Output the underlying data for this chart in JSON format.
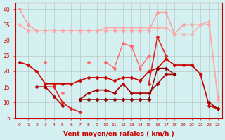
{
  "x": [
    0,
    1,
    2,
    3,
    4,
    5,
    6,
    7,
    8,
    9,
    10,
    11,
    12,
    13,
    14,
    15,
    16,
    17,
    18,
    19,
    20,
    21,
    22,
    23
  ],
  "series": [
    {
      "color": "#ff9999",
      "linewidth": 1.0,
      "marker": "D",
      "markersize": 2.5,
      "values": [
        40,
        35,
        33,
        33,
        33,
        33,
        33,
        33,
        33,
        33,
        33,
        33,
        33,
        33,
        33,
        33,
        39,
        39,
        32,
        35,
        35,
        35,
        35,
        12
      ]
    },
    {
      "color": "#ffaaaa",
      "linewidth": 1.0,
      "marker": "D",
      "markersize": 2.5,
      "values": [
        35,
        33,
        33,
        33,
        33,
        33,
        33,
        33,
        33,
        33,
        34,
        34,
        34,
        34,
        34,
        34,
        34,
        34,
        32,
        32,
        32,
        35,
        36,
        11
      ]
    },
    {
      "color": "#ff6666",
      "linewidth": 1.0,
      "marker": "D",
      "markersize": 2.5,
      "values": [
        null,
        null,
        null,
        23,
        null,
        13,
        null,
        null,
        23,
        null,
        23,
        21,
        29,
        28,
        21,
        25,
        null,
        null,
        null,
        null,
        null,
        null,
        null,
        null
      ]
    },
    {
      "color": "#cc0000",
      "linewidth": 1.2,
      "marker": "D",
      "markersize": 2.5,
      "values": [
        23,
        22,
        20,
        16,
        16,
        16,
        16,
        17,
        18,
        18,
        18,
        17,
        18,
        18,
        17,
        20,
        21,
        24,
        22,
        22,
        22,
        19,
        9,
        8
      ]
    },
    {
      "color": "#dd2222",
      "linewidth": 1.2,
      "marker": "D",
      "markersize": 2.5,
      "values": [
        null,
        null,
        null,
        15,
        15,
        10,
        8,
        7,
        null,
        null,
        null,
        null,
        null,
        null,
        null,
        16,
        31,
        25,
        null,
        null,
        null,
        null,
        null,
        null
      ]
    },
    {
      "color": "#aa0000",
      "linewidth": 1.2,
      "marker": "D",
      "markersize": 2.5,
      "values": [
        null,
        null,
        15,
        15,
        12,
        9,
        null,
        11,
        13,
        14,
        14,
        13,
        16,
        13,
        13,
        13,
        16,
        19,
        19,
        null,
        null,
        null,
        10,
        8
      ]
    },
    {
      "color": "#880000",
      "linewidth": 1.0,
      "marker": "D",
      "markersize": 2.5,
      "values": [
        null,
        null,
        null,
        null,
        null,
        null,
        null,
        11,
        11,
        11,
        11,
        11,
        11,
        11,
        11,
        11,
        21,
        21,
        19,
        null,
        null,
        null,
        null,
        null
      ]
    }
  ],
  "xlim": [
    -0.5,
    23.5
  ],
  "ylim": [
    5,
    42
  ],
  "yticks": [
    5,
    10,
    15,
    20,
    25,
    30,
    35,
    40
  ],
  "xticks": [
    0,
    1,
    2,
    3,
    4,
    5,
    6,
    7,
    8,
    9,
    10,
    11,
    12,
    13,
    14,
    15,
    16,
    17,
    18,
    19,
    20,
    21,
    22,
    23
  ],
  "xlabel": "Vent moyen/en rafales ( km/h )",
  "background_color": "#d4f0f0",
  "grid_color": "#aaaaaa",
  "xlabel_color": "#cc0000",
  "tick_color": "#cc0000",
  "axis_color": "#cc0000"
}
